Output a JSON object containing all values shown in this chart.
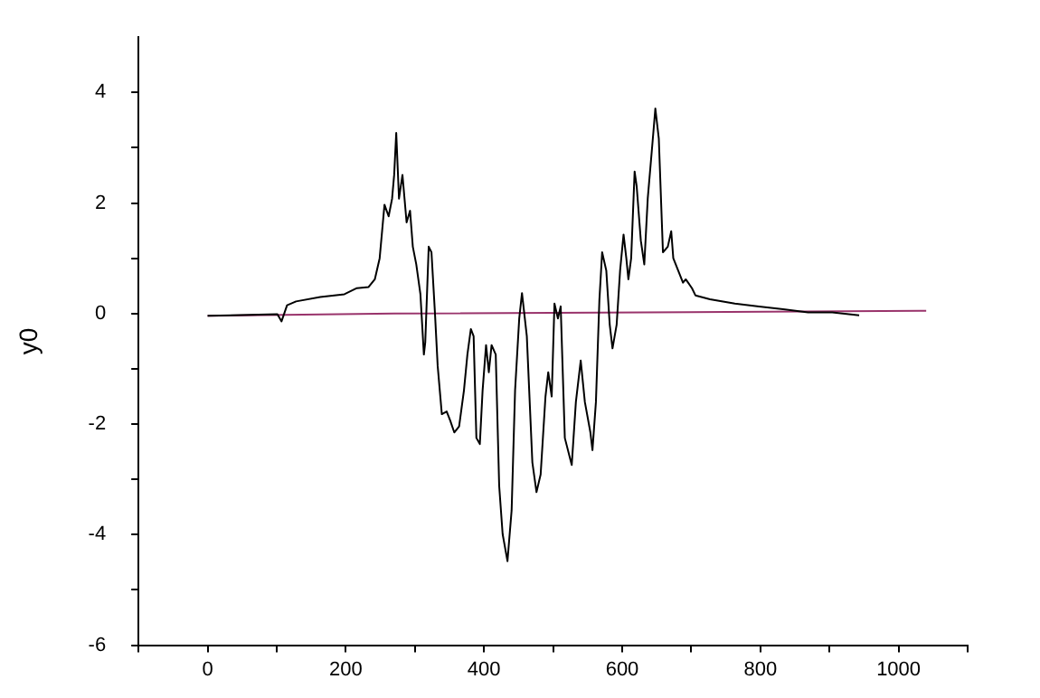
{
  "chart_data": {
    "type": "line",
    "ylabel": "y0",
    "xlim": [
      -100,
      1100
    ],
    "ylim": [
      -6,
      5
    ],
    "xticks": [
      {
        "value": -100,
        "label": null
      },
      0,
      {
        "value": 100,
        "label": null
      },
      200,
      {
        "value": 300,
        "label": null
      },
      400,
      {
        "value": 500,
        "label": null
      },
      600,
      {
        "value": 700,
        "label": null
      },
      800,
      {
        "value": 900,
        "label": null
      },
      1000,
      {
        "value": 1100,
        "label": null
      }
    ],
    "yticks": [
      -6,
      {
        "value": -5,
        "label": null
      },
      -4,
      {
        "value": -3,
        "label": null
      },
      -2,
      {
        "value": -1,
        "label": null
      },
      0,
      {
        "value": 1,
        "label": null
      },
      2,
      {
        "value": 3,
        "label": null
      },
      4
    ],
    "grid": false,
    "legend": false,
    "marker": "none",
    "line_style": "solid",
    "series": [
      {
        "color": "#000000",
        "x": [
          0,
          101,
          107,
          115,
          128,
          163,
          198,
          216,
          233,
          242,
          249,
          256,
          262,
          267,
          270,
          273,
          277,
          282,
          288,
          293,
          297,
          302,
          308,
          313,
          315,
          320,
          324,
          329,
          333,
          339,
          346,
          351,
          357,
          364,
          371,
          376,
          381,
          385,
          389,
          394,
          398,
          403,
          407,
          411,
          417,
          422,
          427,
          434,
          440,
          445,
          451,
          455,
          462,
          470,
          476,
          482,
          489,
          493,
          498,
          502,
          507,
          511,
          517,
          527,
          533,
          540,
          546,
          554,
          557,
          562,
          567,
          571,
          577,
          582,
          586,
          592,
          597,
          602,
          606,
          609,
          613,
          618,
          621,
          627,
          632,
          637,
          644,
          648,
          653,
          659,
          666,
          671,
          674,
          681,
          688,
          692,
          701,
          706,
          727,
          763,
          798,
          833,
          869,
          904,
          943
        ],
        "values": [
          -0.04,
          -0.01,
          -0.14,
          0.15,
          0.22,
          0.3,
          0.35,
          0.46,
          0.48,
          0.62,
          1.0,
          1.97,
          1.76,
          2.08,
          2.51,
          3.27,
          2.08,
          2.51,
          1.65,
          1.86,
          1.21,
          0.89,
          0.35,
          -0.74,
          -0.52,
          1.21,
          1.11,
          0.02,
          -0.95,
          -1.82,
          -1.77,
          -1.93,
          -2.15,
          -2.04,
          -1.39,
          -0.74,
          -0.28,
          -0.41,
          -2.25,
          -2.36,
          -1.39,
          -0.57,
          -1.06,
          -0.57,
          -0.74,
          -3.12,
          -3.99,
          -4.48,
          -3.56,
          -1.39,
          -0.09,
          0.37,
          -0.41,
          -2.69,
          -3.23,
          -2.91,
          -1.5,
          -1.06,
          -1.5,
          0.18,
          -0.09,
          0.13,
          -2.25,
          -2.74,
          -1.6,
          -0.85,
          -1.6,
          -2.15,
          -2.47,
          -1.6,
          0.24,
          1.11,
          0.78,
          -0.2,
          -0.63,
          -0.2,
          0.78,
          1.43,
          1.0,
          0.62,
          1.0,
          2.57,
          2.3,
          1.32,
          0.89,
          2.08,
          3.11,
          3.71,
          3.17,
          1.11,
          1.21,
          1.49,
          1.0,
          0.78,
          0.56,
          0.62,
          0.46,
          0.33,
          0.26,
          0.18,
          0.13,
          0.08,
          0.02,
          0.02,
          -0.03
        ]
      },
      {
        "color": "#99336b",
        "x": [
          0,
          270,
          1040
        ],
        "values": [
          -0.04,
          0.0,
          0.05
        ]
      }
    ]
  }
}
